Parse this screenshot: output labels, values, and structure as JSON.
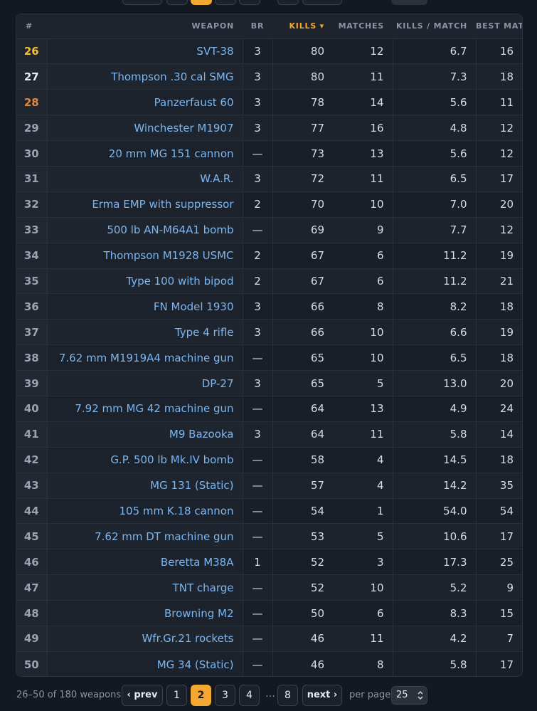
{
  "columns": {
    "rank": "#",
    "weapon": "WEAPON",
    "br": "BR",
    "kills": "KILLS ▾",
    "matches": "MATCHES",
    "kpm": "KILLS / MATCH",
    "best": "BEST MATCH"
  },
  "rows": [
    {
      "rank": "26",
      "weapon": "SVT-38",
      "br": "3",
      "kills": "80",
      "matches": "12",
      "kpm": "6.7",
      "best": "16",
      "tier": "gold"
    },
    {
      "rank": "27",
      "weapon": "Thompson .30 cal SMG",
      "br": "3",
      "kills": "80",
      "matches": "11",
      "kpm": "7.3",
      "best": "18",
      "tier": "white"
    },
    {
      "rank": "28",
      "weapon": "Panzerfaust 60",
      "br": "3",
      "kills": "78",
      "matches": "14",
      "kpm": "5.6",
      "best": "11",
      "tier": "bronze"
    },
    {
      "rank": "29",
      "weapon": "Winchester M1907",
      "br": "3",
      "kills": "77",
      "matches": "16",
      "kpm": "4.8",
      "best": "12",
      "tier": ""
    },
    {
      "rank": "30",
      "weapon": "20 mm MG 151 cannon",
      "br": "—",
      "kills": "73",
      "matches": "13",
      "kpm": "5.6",
      "best": "12",
      "tier": ""
    },
    {
      "rank": "31",
      "weapon": "W.A.R.",
      "br": "3",
      "kills": "72",
      "matches": "11",
      "kpm": "6.5",
      "best": "17",
      "tier": ""
    },
    {
      "rank": "32",
      "weapon": "Erma EMP with suppressor",
      "br": "2",
      "kills": "70",
      "matches": "10",
      "kpm": "7.0",
      "best": "20",
      "tier": ""
    },
    {
      "rank": "33",
      "weapon": "500 lb AN-M64A1 bomb",
      "br": "—",
      "kills": "69",
      "matches": "9",
      "kpm": "7.7",
      "best": "12",
      "tier": ""
    },
    {
      "rank": "34",
      "weapon": "Thompson M1928 USMC",
      "br": "2",
      "kills": "67",
      "matches": "6",
      "kpm": "11.2",
      "best": "19",
      "tier": ""
    },
    {
      "rank": "35",
      "weapon": "Type 100 with bipod",
      "br": "2",
      "kills": "67",
      "matches": "6",
      "kpm": "11.2",
      "best": "21",
      "tier": ""
    },
    {
      "rank": "36",
      "weapon": "FN Model 1930",
      "br": "3",
      "kills": "66",
      "matches": "8",
      "kpm": "8.2",
      "best": "18",
      "tier": ""
    },
    {
      "rank": "37",
      "weapon": "Type 4 rifle",
      "br": "3",
      "kills": "66",
      "matches": "10",
      "kpm": "6.6",
      "best": "19",
      "tier": ""
    },
    {
      "rank": "38",
      "weapon": "7.62 mm M1919A4 machine gun",
      "br": "—",
      "kills": "65",
      "matches": "10",
      "kpm": "6.5",
      "best": "18",
      "tier": ""
    },
    {
      "rank": "39",
      "weapon": "DP-27",
      "br": "3",
      "kills": "65",
      "matches": "5",
      "kpm": "13.0",
      "best": "20",
      "tier": ""
    },
    {
      "rank": "40",
      "weapon": "7.92 mm MG 42 machine gun",
      "br": "—",
      "kills": "64",
      "matches": "13",
      "kpm": "4.9",
      "best": "24",
      "tier": ""
    },
    {
      "rank": "41",
      "weapon": "M9 Bazooka",
      "br": "3",
      "kills": "64",
      "matches": "11",
      "kpm": "5.8",
      "best": "14",
      "tier": ""
    },
    {
      "rank": "42",
      "weapon": "G.P. 500 lb Mk.IV bomb",
      "br": "—",
      "kills": "58",
      "matches": "4",
      "kpm": "14.5",
      "best": "18",
      "tier": ""
    },
    {
      "rank": "43",
      "weapon": "MG 131 (Static)",
      "br": "—",
      "kills": "57",
      "matches": "4",
      "kpm": "14.2",
      "best": "35",
      "tier": ""
    },
    {
      "rank": "44",
      "weapon": "105 mm K.18 cannon",
      "br": "—",
      "kills": "54",
      "matches": "1",
      "kpm": "54.0",
      "best": "54",
      "tier": ""
    },
    {
      "rank": "45",
      "weapon": "7.62 mm DT machine gun",
      "br": "—",
      "kills": "53",
      "matches": "5",
      "kpm": "10.6",
      "best": "17",
      "tier": ""
    },
    {
      "rank": "46",
      "weapon": "Beretta M38A",
      "br": "1",
      "kills": "52",
      "matches": "3",
      "kpm": "17.3",
      "best": "25",
      "tier": ""
    },
    {
      "rank": "47",
      "weapon": "TNT charge",
      "br": "—",
      "kills": "52",
      "matches": "10",
      "kpm": "5.2",
      "best": "9",
      "tier": ""
    },
    {
      "rank": "48",
      "weapon": "Browning M2",
      "br": "—",
      "kills": "50",
      "matches": "6",
      "kpm": "8.3",
      "best": "15",
      "tier": ""
    },
    {
      "rank": "49",
      "weapon": "Wfr.Gr.21 rockets",
      "br": "—",
      "kills": "46",
      "matches": "11",
      "kpm": "4.2",
      "best": "7",
      "tier": ""
    },
    {
      "rank": "50",
      "weapon": "MG 34 (Static)",
      "br": "—",
      "kills": "46",
      "matches": "8",
      "kpm": "5.8",
      "best": "17",
      "tier": ""
    }
  ],
  "footer": {
    "summary": "26–50 of 180 weapons",
    "prev": "‹ prev",
    "next": "next ›",
    "pages": [
      "1",
      "2",
      "3",
      "4"
    ],
    "ellipsis": "…",
    "last_page": "8",
    "active_page": "2",
    "per_page_label": "per page",
    "per_page_value": "25",
    "per_page_icon": "up-down-chevron-icon"
  },
  "colors": {
    "accent": "#f3a931",
    "link": "#7bb6f0",
    "rank_gold": "#f3c12e",
    "rank_bronze": "#e08a3c"
  }
}
